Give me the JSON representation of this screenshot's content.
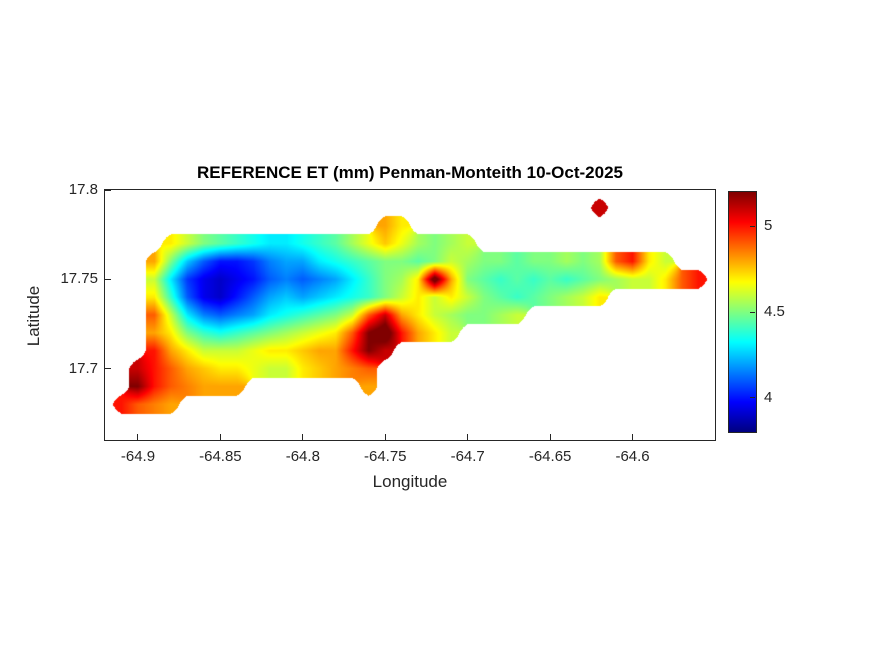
{
  "colors": {
    "background": "#ffffff",
    "axis": "#262626",
    "title": "#000000"
  },
  "chart_data": {
    "type": "heatmap",
    "title": "REFERENCE ET (mm) Penman-Monteith 10-Oct-2025",
    "xlabel": "Longitude",
    "ylabel": "Latitude",
    "xlim": [
      -64.92,
      -64.55
    ],
    "ylim": [
      17.66,
      17.8
    ],
    "x_ticks": {
      "values": [
        -64.9,
        -64.85,
        -64.8,
        -64.75,
        -64.7,
        -64.65,
        -64.6
      ],
      "labels": [
        "-64.9",
        "-64.85",
        "-64.8",
        "-64.75",
        "-64.7",
        "-64.65",
        "-64.6"
      ]
    },
    "y_ticks": {
      "values": [
        17.8,
        17.75,
        17.7
      ],
      "labels": [
        "17.8",
        "17.75",
        "17.7"
      ]
    },
    "colormap": "jet",
    "clim": [
      3.8,
      5.2
    ],
    "colorbar_ticks": {
      "values": [
        5,
        4.5,
        4
      ],
      "labels": [
        "5",
        "4.5",
        "4"
      ]
    },
    "grid": {
      "lon_start": -64.91,
      "lon_step": 0.01,
      "lat_start": 17.79,
      "lat_step": -0.01,
      "values": [
        [
          null,
          null,
          null,
          null,
          null,
          null,
          null,
          null,
          null,
          null,
          null,
          null,
          null,
          null,
          null,
          null,
          null,
          null,
          null,
          null,
          null,
          null,
          null,
          null,
          null,
          null,
          null,
          null,
          null,
          5.1,
          null,
          null,
          null,
          null,
          null,
          null,
          null
        ],
        [
          null,
          null,
          null,
          null,
          null,
          null,
          null,
          null,
          null,
          null,
          null,
          null,
          null,
          null,
          null,
          null,
          4.8,
          4.7,
          null,
          null,
          null,
          null,
          null,
          null,
          null,
          null,
          null,
          null,
          null,
          null,
          null,
          null,
          null,
          null,
          null,
          null,
          null
        ],
        [
          null,
          null,
          null,
          4.7,
          4.6,
          4.5,
          4.45,
          4.4,
          4.35,
          4.3,
          4.3,
          4.35,
          4.4,
          4.45,
          4.55,
          4.65,
          4.75,
          4.65,
          4.55,
          4.5,
          4.55,
          4.6,
          null,
          null,
          null,
          null,
          null,
          null,
          null,
          null,
          null,
          null,
          null,
          null,
          null,
          null,
          null
        ],
        [
          null,
          null,
          4.8,
          4.5,
          4.25,
          4.1,
          4.0,
          4.0,
          4.05,
          4.15,
          4.2,
          4.2,
          4.3,
          4.35,
          4.4,
          4.45,
          4.5,
          4.5,
          4.45,
          4.5,
          4.6,
          4.55,
          4.5,
          4.5,
          4.45,
          4.5,
          4.5,
          4.55,
          4.5,
          4.55,
          4.9,
          5.0,
          4.7,
          4.6,
          null,
          null,
          null
        ],
        [
          null,
          null,
          4.6,
          4.3,
          4.05,
          3.95,
          3.9,
          3.95,
          4.0,
          4.1,
          4.15,
          4.1,
          4.15,
          4.2,
          4.3,
          4.4,
          4.5,
          4.55,
          4.7,
          5.3,
          4.8,
          4.5,
          4.45,
          4.4,
          4.45,
          4.4,
          4.45,
          4.4,
          4.45,
          4.5,
          4.55,
          4.6,
          4.6,
          4.7,
          4.9,
          5.0,
          null
        ],
        [
          null,
          null,
          4.7,
          4.4,
          4.1,
          3.95,
          3.9,
          4.0,
          4.1,
          4.2,
          4.25,
          4.2,
          4.25,
          4.3,
          4.35,
          4.4,
          4.5,
          4.6,
          4.7,
          4.6,
          4.7,
          4.6,
          4.5,
          4.45,
          4.4,
          4.45,
          4.5,
          4.55,
          4.6,
          4.7,
          null,
          null,
          null,
          null,
          null,
          null,
          null
        ],
        [
          null,
          null,
          4.9,
          4.6,
          4.3,
          4.15,
          4.1,
          4.15,
          4.2,
          4.3,
          4.35,
          4.4,
          4.45,
          4.5,
          4.6,
          4.9,
          5.1,
          4.8,
          4.7,
          4.6,
          4.55,
          4.5,
          4.5,
          4.55,
          4.6,
          null,
          null,
          null,
          null,
          null,
          null,
          null,
          null,
          null,
          null,
          null,
          null
        ],
        [
          null,
          null,
          4.8,
          4.7,
          4.5,
          4.4,
          4.35,
          4.4,
          4.45,
          4.5,
          4.55,
          4.6,
          4.65,
          4.7,
          4.9,
          5.2,
          5.3,
          5.0,
          4.8,
          4.7,
          4.6,
          null,
          null,
          null,
          null,
          null,
          null,
          null,
          null,
          null,
          null,
          null,
          null,
          null,
          null,
          null,
          null
        ],
        [
          null,
          null,
          5.0,
          4.8,
          4.7,
          4.6,
          4.6,
          4.6,
          4.65,
          4.7,
          4.7,
          4.75,
          4.8,
          4.8,
          5.0,
          5.2,
          5.1,
          null,
          null,
          null,
          null,
          null,
          null,
          null,
          null,
          null,
          null,
          null,
          null,
          null,
          null,
          null,
          null,
          null,
          null,
          null,
          null
        ],
        [
          null,
          5.1,
          5.0,
          4.9,
          4.8,
          4.75,
          4.7,
          4.7,
          4.65,
          4.6,
          4.6,
          4.7,
          4.75,
          4.8,
          4.85,
          4.9,
          null,
          null,
          null,
          null,
          null,
          null,
          null,
          null,
          null,
          null,
          null,
          null,
          null,
          null,
          null,
          null,
          null,
          null,
          null,
          null,
          null
        ],
        [
          null,
          5.2,
          5.0,
          4.9,
          4.85,
          4.8,
          4.8,
          4.8,
          null,
          null,
          null,
          null,
          null,
          null,
          null,
          4.8,
          null,
          null,
          null,
          null,
          null,
          null,
          null,
          null,
          null,
          null,
          null,
          null,
          null,
          null,
          null,
          null,
          null,
          null,
          null,
          null,
          null
        ],
        [
          5.0,
          4.9,
          4.85,
          4.8,
          null,
          null,
          null,
          null,
          null,
          null,
          null,
          null,
          null,
          null,
          null,
          null,
          null,
          null,
          null,
          null,
          null,
          null,
          null,
          null,
          null,
          null,
          null,
          null,
          null,
          null,
          null,
          null,
          null,
          null,
          null,
          null,
          null
        ],
        [
          null,
          null,
          null,
          null,
          null,
          null,
          null,
          null,
          null,
          null,
          null,
          null,
          null,
          null,
          null,
          null,
          null,
          null,
          null,
          null,
          null,
          null,
          null,
          null,
          null,
          null,
          null,
          null,
          null,
          null,
          null,
          null,
          null,
          null,
          null,
          null,
          null
        ]
      ]
    }
  }
}
